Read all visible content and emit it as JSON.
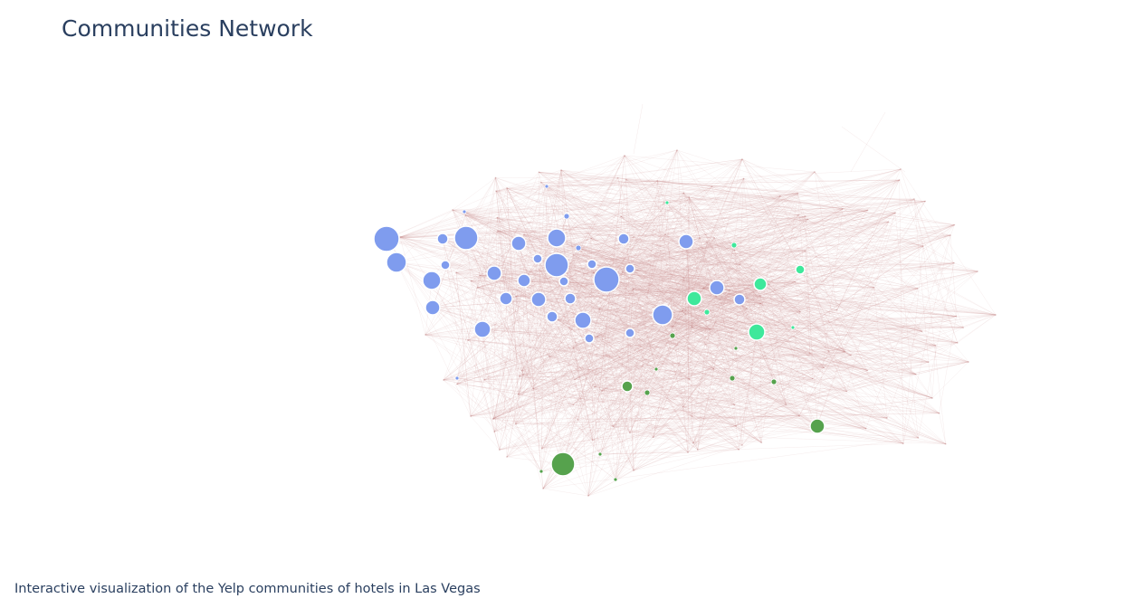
{
  "title": "Communities Network",
  "caption": "Interactive visualization of the Yelp communities of hotels in Las Vegas",
  "colors": {
    "community_blue": "#7f9cee",
    "community_teal": "#3ee89b",
    "community_green": "#56a24d",
    "edge": "#c98a8a",
    "node_stroke": "#ffffff",
    "text": "#2a3f5f"
  }
}
